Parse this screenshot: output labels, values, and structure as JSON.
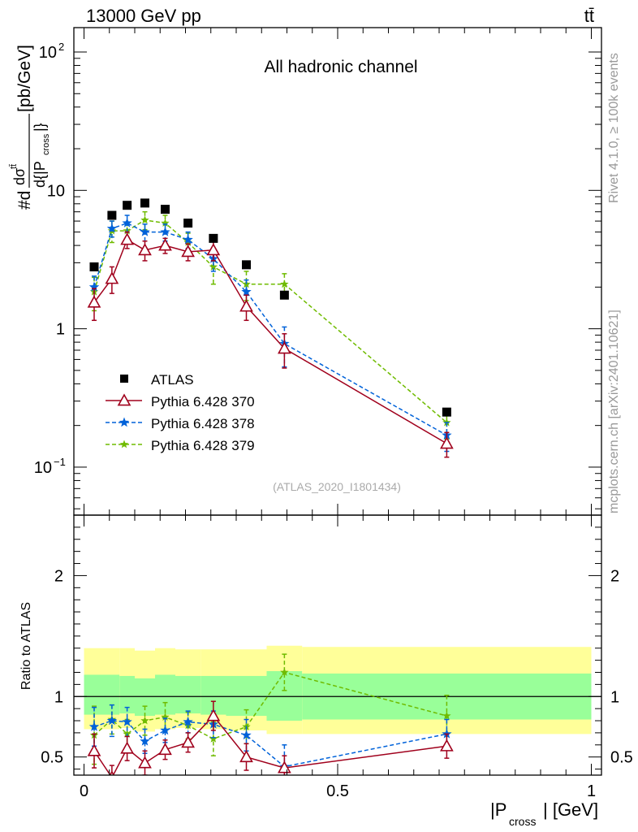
{
  "header": {
    "left": "13000 GeV pp",
    "right": "tt̄"
  },
  "side_labels": {
    "rivet": "Rivet 4.1.0, ≥ 100k events",
    "mcplots": "mcplots.cern.ch [arXiv:2401.10621]"
  },
  "chart_data": {
    "type": "scatter",
    "title": "All hadronic channel",
    "analysis_id": "(ATLAS_2020_I1801434)",
    "xlabel": "|P",
    "xlabel_sub": "cross",
    "xlabel_unit": "| [GeV]",
    "ylabel": "#d dσ^{tt̄}/d{|P_cross|} [pb/GeV]",
    "ratio_ylabel": "Ratio to ATLAS",
    "xlim": [
      -0.02,
      1.02
    ],
    "ylim_log": [
      0.045,
      150
    ],
    "ratio_ylim": [
      0.35,
      2.5
    ],
    "x_ticks": [
      {
        "value": 0,
        "label": "0"
      },
      {
        "value": 0.5,
        "label": "0.5"
      },
      {
        "value": 1,
        "label": "1"
      }
    ],
    "y_ticks": [
      {
        "value": 0.1,
        "base": "10",
        "exp": "−1"
      },
      {
        "value": 1,
        "base": "1",
        "exp": ""
      },
      {
        "value": 10,
        "base": "10",
        "exp": ""
      },
      {
        "value": 100,
        "base": "10",
        "exp": "2"
      }
    ],
    "ratio_ticks": [
      {
        "value": 0.5,
        "label": "0.5"
      },
      {
        "value": 1,
        "label": "1"
      },
      {
        "value": 2,
        "label": "2"
      }
    ],
    "bins": [
      [
        0,
        0.04
      ],
      [
        0.04,
        0.07
      ],
      [
        0.07,
        0.1
      ],
      [
        0.1,
        0.14
      ],
      [
        0.14,
        0.18
      ],
      [
        0.18,
        0.23
      ],
      [
        0.23,
        0.28
      ],
      [
        0.28,
        0.36
      ],
      [
        0.36,
        0.43
      ],
      [
        0.43,
        1.0
      ]
    ],
    "data": {
      "name": "ATLAS",
      "x": [
        0.02,
        0.055,
        0.085,
        0.12,
        0.16,
        0.205,
        0.255,
        0.32,
        0.395,
        0.715
      ],
      "y": [
        2.8,
        6.6,
        7.8,
        8.1,
        7.3,
        5.8,
        4.5,
        2.9,
        1.75,
        0.25
      ]
    },
    "ratio_bands": {
      "yellow_up": [
        1.4,
        1.4,
        1.4,
        1.38,
        1.4,
        1.39,
        1.39,
        1.39,
        1.42,
        1.41
      ],
      "yellow_down": [
        0.73,
        0.73,
        0.74,
        0.71,
        0.73,
        0.74,
        0.73,
        0.72,
        0.69,
        0.69
      ],
      "green_up": [
        1.18,
        1.18,
        1.17,
        1.15,
        1.18,
        1.17,
        1.17,
        1.17,
        1.21,
        1.19
      ],
      "green_down": [
        0.85,
        0.85,
        0.86,
        0.84,
        0.85,
        0.86,
        0.85,
        0.84,
        0.8,
        0.81
      ]
    },
    "series": [
      {
        "name": "Pythia 6.428 370",
        "color": "#a0001c",
        "dash": "",
        "marker": "triangle",
        "x": [
          0.02,
          0.055,
          0.085,
          0.12,
          0.16,
          0.205,
          0.255,
          0.32,
          0.395,
          0.715
        ],
        "y": [
          1.55,
          2.3,
          4.4,
          3.7,
          4.0,
          3.6,
          3.7,
          1.45,
          0.72,
          0.148
        ],
        "yerr": [
          0.4,
          0.5,
          0.6,
          0.6,
          0.5,
          0.5,
          0.6,
          0.3,
          0.2,
          0.03
        ],
        "ratio": [
          0.55,
          0.33,
          0.57,
          0.45,
          0.56,
          0.62,
          0.84,
          0.5,
          0.41,
          0.59
        ],
        "ratio_err": [
          0.14,
          0.1,
          0.1,
          0.1,
          0.08,
          0.08,
          0.12,
          0.11,
          0.1,
          0.1
        ]
      },
      {
        "name": "Pythia 6.428 378",
        "color": "#0062d9",
        "dash": "5,3",
        "marker": "star",
        "x": [
          0.02,
          0.055,
          0.085,
          0.12,
          0.16,
          0.205,
          0.255,
          0.32,
          0.395,
          0.715
        ],
        "y": [
          2.0,
          5.3,
          5.8,
          5.0,
          5.0,
          4.4,
          3.2,
          1.85,
          0.78,
          0.17
        ],
        "yerr": [
          0.4,
          0.7,
          0.8,
          0.7,
          0.7,
          0.6,
          0.6,
          0.4,
          0.25,
          0.04
        ],
        "ratio": [
          0.75,
          0.8,
          0.79,
          0.63,
          0.72,
          0.79,
          0.77,
          0.68,
          0.42,
          0.69
        ],
        "ratio_err": [
          0.16,
          0.13,
          0.12,
          0.1,
          0.1,
          0.09,
          0.11,
          0.13,
          0.18,
          0.12
        ]
      },
      {
        "name": "Pythia 6.428 379",
        "color": "#6fbb00",
        "dash": "5,3",
        "marker": "star",
        "x": [
          0.02,
          0.055,
          0.085,
          0.12,
          0.16,
          0.205,
          0.255,
          0.32,
          0.395,
          0.715
        ],
        "y": [
          1.85,
          5.1,
          5.1,
          6.1,
          5.8,
          4.2,
          2.8,
          2.1,
          2.1,
          0.21
        ],
        "yerr": [
          0.5,
          0.9,
          0.8,
          0.9,
          0.8,
          0.7,
          0.7,
          0.5,
          0.4,
          0.05
        ],
        "ratio": [
          0.68,
          0.81,
          0.69,
          0.8,
          0.83,
          0.76,
          0.65,
          0.75,
          1.2,
          0.84
        ],
        "ratio_err": [
          0.24,
          0.12,
          0.12,
          0.12,
          0.12,
          0.11,
          0.14,
          0.14,
          0.15,
          0.17
        ]
      }
    ]
  }
}
